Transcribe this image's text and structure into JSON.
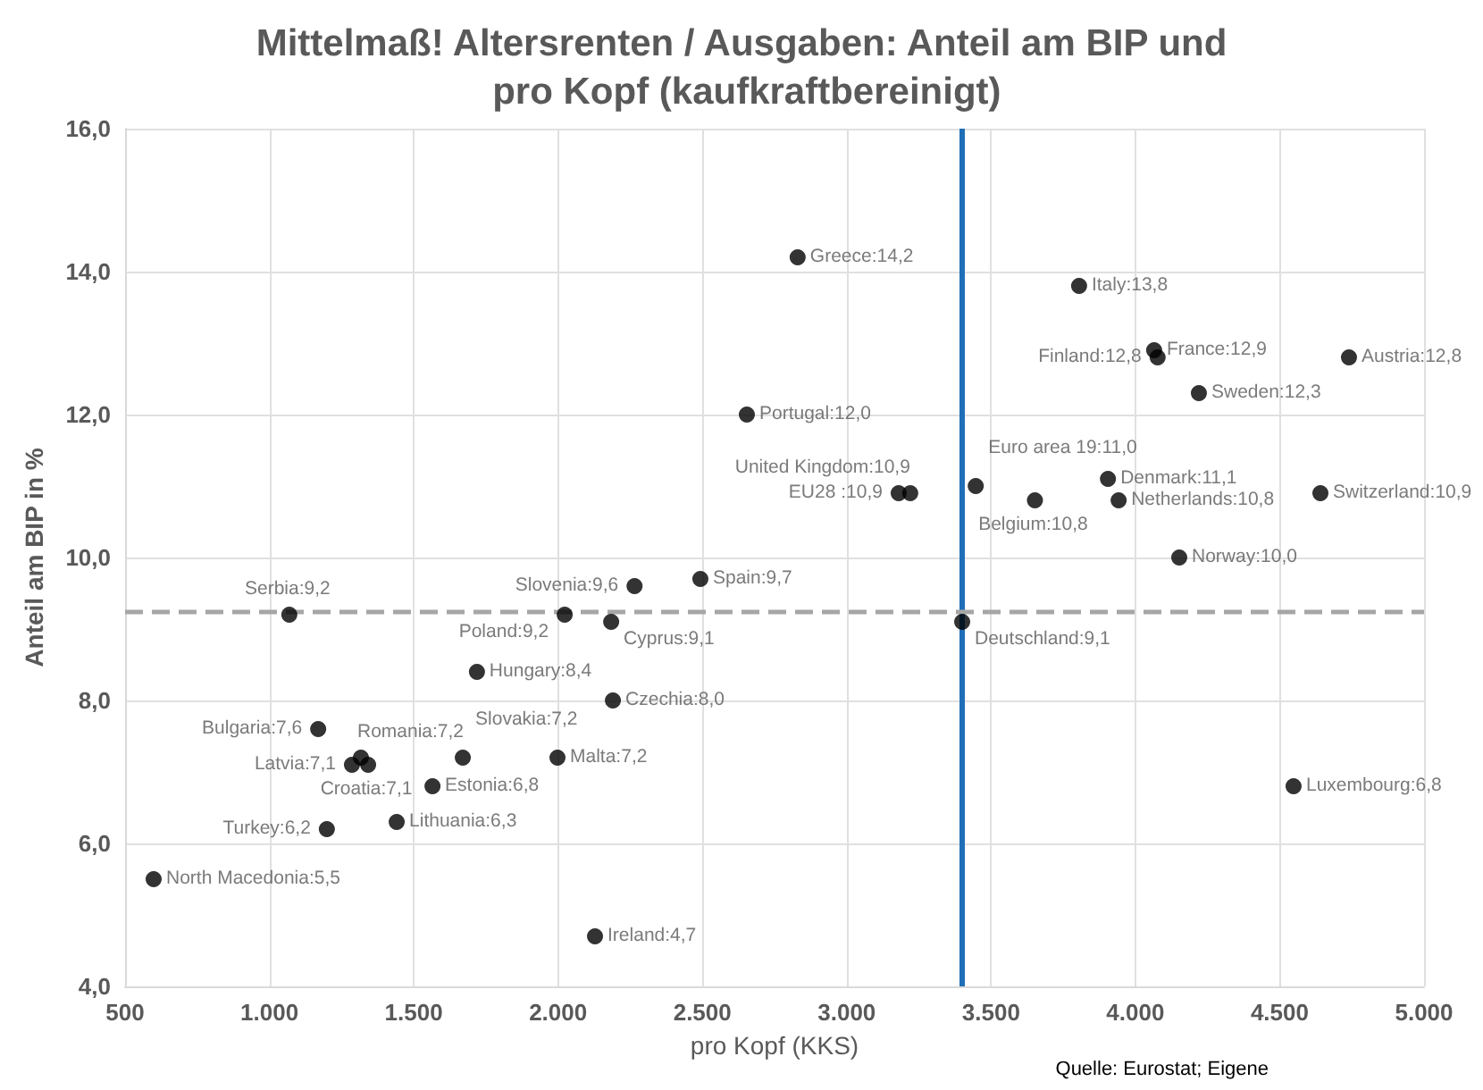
{
  "chart_data": {
    "type": "scatter",
    "title": "Mittelmaß! Altersrenten / Ausgaben: Anteil am BIP und pro Kopf (kaufkraftbereinigt)",
    "xlabel": "pro Kopf (KKS)",
    "ylabel": "Anteil am BIP in %",
    "x": [
      2830,
      3805,
      4065,
      4077,
      4740,
      4220,
      2654,
      3220,
      3180,
      3447,
      3652,
      3905,
      3942,
      4641,
      4152,
      3400,
      4548,
      2493,
      2265,
      2023,
      2184,
      1069,
      1719,
      2190,
      1169,
      1286,
      1317,
      1342,
      1670,
      1998,
      1565,
      1441,
      1199,
      599,
      2128
    ],
    "values": [
      14.2,
      13.8,
      12.9,
      12.8,
      12.8,
      12.3,
      12.0,
      10.9,
      10.9,
      11.0,
      10.8,
      11.1,
      10.8,
      10.9,
      10.0,
      9.1,
      6.8,
      9.7,
      9.6,
      9.2,
      9.1,
      9.2,
      8.4,
      8.0,
      7.6,
      7.1,
      7.2,
      7.1,
      7.2,
      7.2,
      6.8,
      6.3,
      6.2,
      5.5,
      4.7
    ],
    "value_labels": [
      "Greece:14,2",
      "Italy:13,8",
      "France:12,9",
      "Finland:12,8",
      "Austria:12,8",
      "Sweden:12,3",
      "Portugal:12,0",
      "United Kingdom:10,9",
      "EU28 :10,9",
      "Euro area 19:11,0",
      "Belgium:10,8",
      "Denmark:11,1",
      "Netherlands:10,8",
      "Switzerland:10,9",
      "Norway:10,0",
      "Deutschland:9,1",
      "Luxembourg:6,8",
      "Spain:9,7",
      "Slovenia:9,6",
      "Poland:9,2",
      "Cyprus:9,1",
      "Serbia:9,2",
      "Hungary:8,4",
      "Czechia:8,0",
      "Bulgaria:7,6",
      "Latvia:7,1",
      "Romania:7,2",
      "Croatia:7,1",
      "Slovakia:7,2",
      "Malta:7,2",
      "Estonia:6,8",
      "Lithuania:6,3",
      "Turkey:6,2",
      "North Macedonia:5,5",
      "Ireland:4,7"
    ],
    "color": "#000000",
    "marker": "circle",
    "xlim": [
      500,
      5000
    ],
    "xticks": [
      {
        "value": 500,
        "label": "500"
      },
      {
        "value": 1000,
        "label": "1.000"
      },
      {
        "value": 1500,
        "label": "1.500"
      },
      {
        "value": 2000,
        "label": "2.000"
      },
      {
        "value": 2500,
        "label": "2.500"
      },
      {
        "value": 3000,
        "label": "3.000"
      },
      {
        "value": 3500,
        "label": "3.500"
      },
      {
        "value": 4000,
        "label": "4.000"
      },
      {
        "value": 4500,
        "label": "4.500"
      },
      {
        "value": 5000,
        "label": "5.000"
      }
    ],
    "ylim": [
      4,
      16
    ],
    "yticks": [
      {
        "value": 4,
        "label": "4,0"
      },
      {
        "value": 6,
        "label": "6,0"
      },
      {
        "value": 8,
        "label": "8,0"
      },
      {
        "value": 10,
        "label": "10,0"
      },
      {
        "value": 12,
        "label": "12,0"
      },
      {
        "value": 14,
        "label": "14,0"
      },
      {
        "value": 16,
        "label": "16,0"
      }
    ],
    "grid": true,
    "ref_lines": [
      {
        "axis": "x",
        "value": 3400,
        "color": "#1f6fb8",
        "line_style": "solid"
      },
      {
        "axis": "y",
        "value": 9.25,
        "color": "#a6a6a6",
        "line_style": "dashed"
      }
    ],
    "annotations": [
      "Quelle: Eurostat; Eigene"
    ]
  }
}
